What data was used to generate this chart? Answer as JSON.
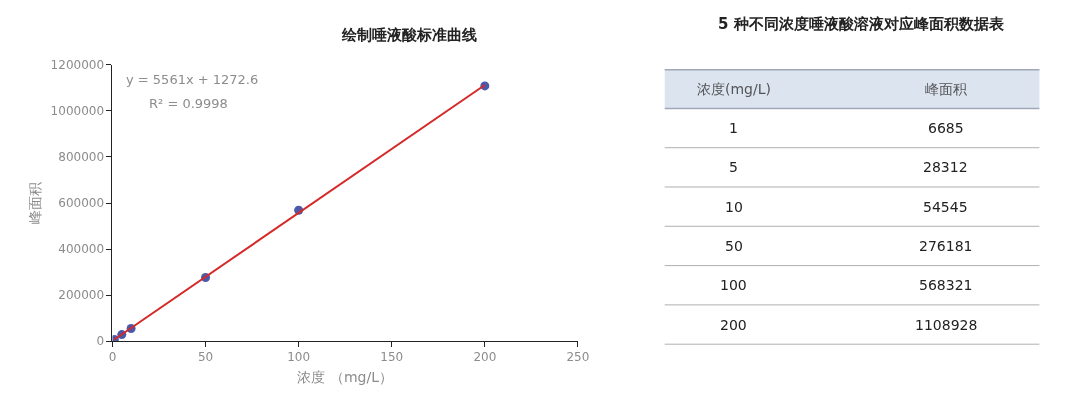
{
  "chart_data": {
    "type": "scatter",
    "title": "绘制唾液酸标准曲线",
    "xlabel": "浓度 （mg/L）",
    "ylabel": "峰面积",
    "xlim": [
      0,
      250
    ],
    "xticks": [
      0,
      50,
      100,
      150,
      200,
      250
    ],
    "ylim": [
      0,
      1200000
    ],
    "yticks": [
      0,
      200000,
      400000,
      600000,
      800000,
      1000000,
      1200000
    ],
    "marker": "circle",
    "series": [
      {
        "color": "#4a5aa8",
        "x": [
          1,
          5,
          10,
          50,
          100,
          200
        ],
        "values": [
          6685,
          28312,
          54545,
          276181,
          568321,
          1108928
        ]
      },
      {
        "type": "line",
        "color": "#d42a2a",
        "marker": "none",
        "line_style": "solid",
        "x": [
          1,
          200
        ],
        "values": [
          6800,
          1113000
        ]
      }
    ],
    "annotations": [
      "y = 5561x + 1272.6",
      "R² = 0.9998",
      "5 种不同浓度唾液酸溶液对应峰面积数据表",
      "浓度(mg/L)",
      "峰面积",
      "1",
      "6685",
      "5",
      "28312",
      "10",
      "54545",
      "50",
      "276181",
      "100",
      "568321",
      "200",
      "1108928"
    ]
  }
}
